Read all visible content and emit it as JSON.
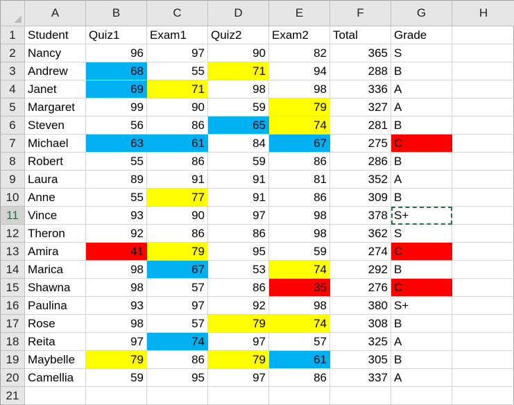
{
  "columns": [
    "A",
    "B",
    "C",
    "D",
    "E",
    "F",
    "G",
    "H"
  ],
  "colors": {
    "blue": "#00b0f0",
    "yellow": "#ffff00",
    "red": "#ff0000"
  },
  "selected_cell": "G11",
  "rows": [
    {
      "num": "1",
      "cells": [
        "Student",
        "Quiz1",
        "Exam1",
        "Quiz2",
        "Exam2",
        "Total",
        "Grade",
        ""
      ],
      "fills": [
        "",
        "",
        "",
        "",
        "",
        "",
        "",
        ""
      ]
    },
    {
      "num": "2",
      "cells": [
        "Nancy",
        "96",
        "97",
        "90",
        "82",
        "365",
        "S",
        ""
      ],
      "fills": [
        "",
        "",
        "",
        "",
        "",
        "",
        "",
        ""
      ]
    },
    {
      "num": "3",
      "cells": [
        "Andrew",
        "68",
        "55",
        "71",
        "94",
        "288",
        "B",
        ""
      ],
      "fills": [
        "",
        "blue",
        "",
        "yellow",
        "",
        "",
        "",
        ""
      ]
    },
    {
      "num": "4",
      "cells": [
        "Janet",
        "69",
        "71",
        "98",
        "98",
        "336",
        "A",
        ""
      ],
      "fills": [
        "",
        "blue",
        "yellow",
        "",
        "",
        "",
        "",
        ""
      ]
    },
    {
      "num": "5",
      "cells": [
        "Margaret",
        "99",
        "90",
        "59",
        "79",
        "327",
        "A",
        ""
      ],
      "fills": [
        "",
        "",
        "",
        "",
        "yellow",
        "",
        "",
        ""
      ]
    },
    {
      "num": "6",
      "cells": [
        "Steven",
        "56",
        "86",
        "65",
        "74",
        "281",
        "B",
        ""
      ],
      "fills": [
        "",
        "",
        "",
        "blue",
        "yellow",
        "",
        "",
        ""
      ]
    },
    {
      "num": "7",
      "cells": [
        "Michael",
        "63",
        "61",
        "84",
        "67",
        "275",
        "C",
        ""
      ],
      "fills": [
        "",
        "blue",
        "blue",
        "",
        "blue",
        "",
        "red",
        ""
      ]
    },
    {
      "num": "8",
      "cells": [
        "Robert",
        "55",
        "86",
        "59",
        "86",
        "286",
        "B",
        ""
      ],
      "fills": [
        "",
        "",
        "",
        "",
        "",
        "",
        "",
        ""
      ]
    },
    {
      "num": "9",
      "cells": [
        "Laura",
        "89",
        "91",
        "91",
        "81",
        "352",
        "A",
        ""
      ],
      "fills": [
        "",
        "",
        "",
        "",
        "",
        "",
        "",
        ""
      ]
    },
    {
      "num": "10",
      "cells": [
        "Anne",
        "55",
        "77",
        "91",
        "86",
        "309",
        "B",
        ""
      ],
      "fills": [
        "",
        "",
        "yellow",
        "",
        "",
        "",
        "",
        ""
      ]
    },
    {
      "num": "11",
      "cells": [
        "Vince",
        "93",
        "90",
        "97",
        "98",
        "378",
        "S+",
        ""
      ],
      "fills": [
        "",
        "",
        "",
        "",
        "",
        "",
        "",
        ""
      ]
    },
    {
      "num": "12",
      "cells": [
        "Theron",
        "92",
        "86",
        "86",
        "98",
        "362",
        "S",
        ""
      ],
      "fills": [
        "",
        "",
        "",
        "",
        "",
        "",
        "",
        ""
      ]
    },
    {
      "num": "13",
      "cells": [
        "Amira",
        "41",
        "79",
        "95",
        "59",
        "274",
        "C",
        ""
      ],
      "fills": [
        "",
        "red",
        "yellow",
        "",
        "",
        "",
        "red",
        ""
      ]
    },
    {
      "num": "14",
      "cells": [
        "Marica",
        "98",
        "67",
        "53",
        "74",
        "292",
        "B",
        ""
      ],
      "fills": [
        "",
        "",
        "blue",
        "",
        "yellow",
        "",
        "",
        ""
      ]
    },
    {
      "num": "15",
      "cells": [
        "Shawna",
        "98",
        "57",
        "86",
        "35",
        "276",
        "C",
        ""
      ],
      "fills": [
        "",
        "",
        "",
        "",
        "red",
        "",
        "red",
        ""
      ]
    },
    {
      "num": "16",
      "cells": [
        "Paulina",
        "93",
        "97",
        "92",
        "98",
        "380",
        "S+",
        ""
      ],
      "fills": [
        "",
        "",
        "",
        "",
        "",
        "",
        "",
        ""
      ]
    },
    {
      "num": "17",
      "cells": [
        "Rose",
        "98",
        "57",
        "79",
        "74",
        "308",
        "B",
        ""
      ],
      "fills": [
        "",
        "",
        "",
        "yellow",
        "yellow",
        "",
        "",
        ""
      ]
    },
    {
      "num": "18",
      "cells": [
        "Reita",
        "97",
        "74",
        "97",
        "57",
        "325",
        "A",
        ""
      ],
      "fills": [
        "",
        "",
        "blue",
        "",
        "",
        "",
        "",
        ""
      ]
    },
    {
      "num": "19",
      "cells": [
        "Maybelle",
        "79",
        "86",
        "79",
        "61",
        "305",
        "B",
        ""
      ],
      "fills": [
        "",
        "yellow",
        "",
        "yellow",
        "blue",
        "",
        "",
        ""
      ]
    },
    {
      "num": "20",
      "cells": [
        "Camellia",
        "59",
        "95",
        "97",
        "86",
        "337",
        "A",
        ""
      ],
      "fills": [
        "",
        "",
        "",
        "",
        "",
        "",
        "",
        ""
      ]
    },
    {
      "num": "21",
      "cells": [
        "",
        "",
        "",
        "",
        "",
        "",
        "",
        ""
      ],
      "fills": [
        "",
        "",
        "",
        "",
        "",
        "",
        "",
        ""
      ]
    }
  ]
}
